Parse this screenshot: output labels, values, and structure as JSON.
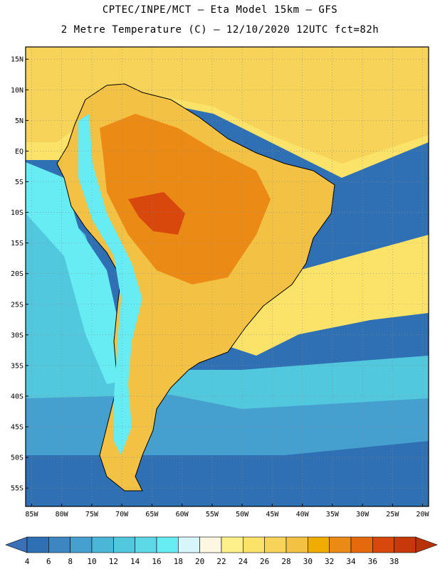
{
  "title": {
    "line1": "CPTEC/INPE/MCT –  Eta Model 15km – GFS",
    "line2": "2 Metre Temperature (C) – 12/10/2020 12UTC fct=82h"
  },
  "axes": {
    "lat_labels": [
      "15N",
      "10N",
      "5N",
      "EQ",
      "5S",
      "10S",
      "15S",
      "20S",
      "25S",
      "30S",
      "35S",
      "40S",
      "45S",
      "50S",
      "55S"
    ],
    "lat_values": [
      15,
      10,
      5,
      0,
      -5,
      -10,
      -15,
      -20,
      -25,
      -30,
      -35,
      -40,
      -45,
      -50,
      -55
    ],
    "lon_labels": [
      "85W",
      "80W",
      "75W",
      "70W",
      "65W",
      "60W",
      "55W",
      "50W",
      "45W",
      "40W",
      "35W",
      "30W",
      "25W",
      "20W"
    ],
    "lon_values": [
      -85,
      -80,
      -75,
      -70,
      -65,
      -60,
      -55,
      -50,
      -45,
      -40,
      -35,
      -30,
      -25,
      -20
    ],
    "lon_range": [
      -86,
      -19
    ],
    "lat_range": [
      -58,
      17
    ],
    "grid": "dotted"
  },
  "colorbar": {
    "labels": [
      "4",
      "6",
      "8",
      "10",
      "12",
      "14",
      "16",
      "18",
      "20",
      "22",
      "24",
      "26",
      "28",
      "30",
      "32",
      "34",
      "36",
      "38"
    ],
    "colors": [
      "#2f6fb3",
      "#3d86c2",
      "#45a0cf",
      "#4cb6d9",
      "#52c8df",
      "#5cd8e6",
      "#66ecf2",
      "#d7f6fb",
      "#fdf6e0",
      "#fdf08a",
      "#fbe36a",
      "#f7d35a",
      "#f3c244",
      "#f0ad00",
      "#ec8a16",
      "#e56a0e",
      "#d8470c",
      "#c7380a"
    ],
    "low_arrow_color": "#3a70b8",
    "high_arrow_color": "#b8320a"
  },
  "field_colors": {
    "deep_ocean": "#2f6fb3",
    "mid_ocean": "#45a0cf",
    "cool_ocean": "#52c8df",
    "coastal_cold": "#66ecf2",
    "warm_ocean": "#fbe36a",
    "tropical_ocean": "#f7d35a",
    "land_warm": "#f3c244",
    "land_hot": "#ec8a16",
    "land_hottest": "#d8470c"
  }
}
